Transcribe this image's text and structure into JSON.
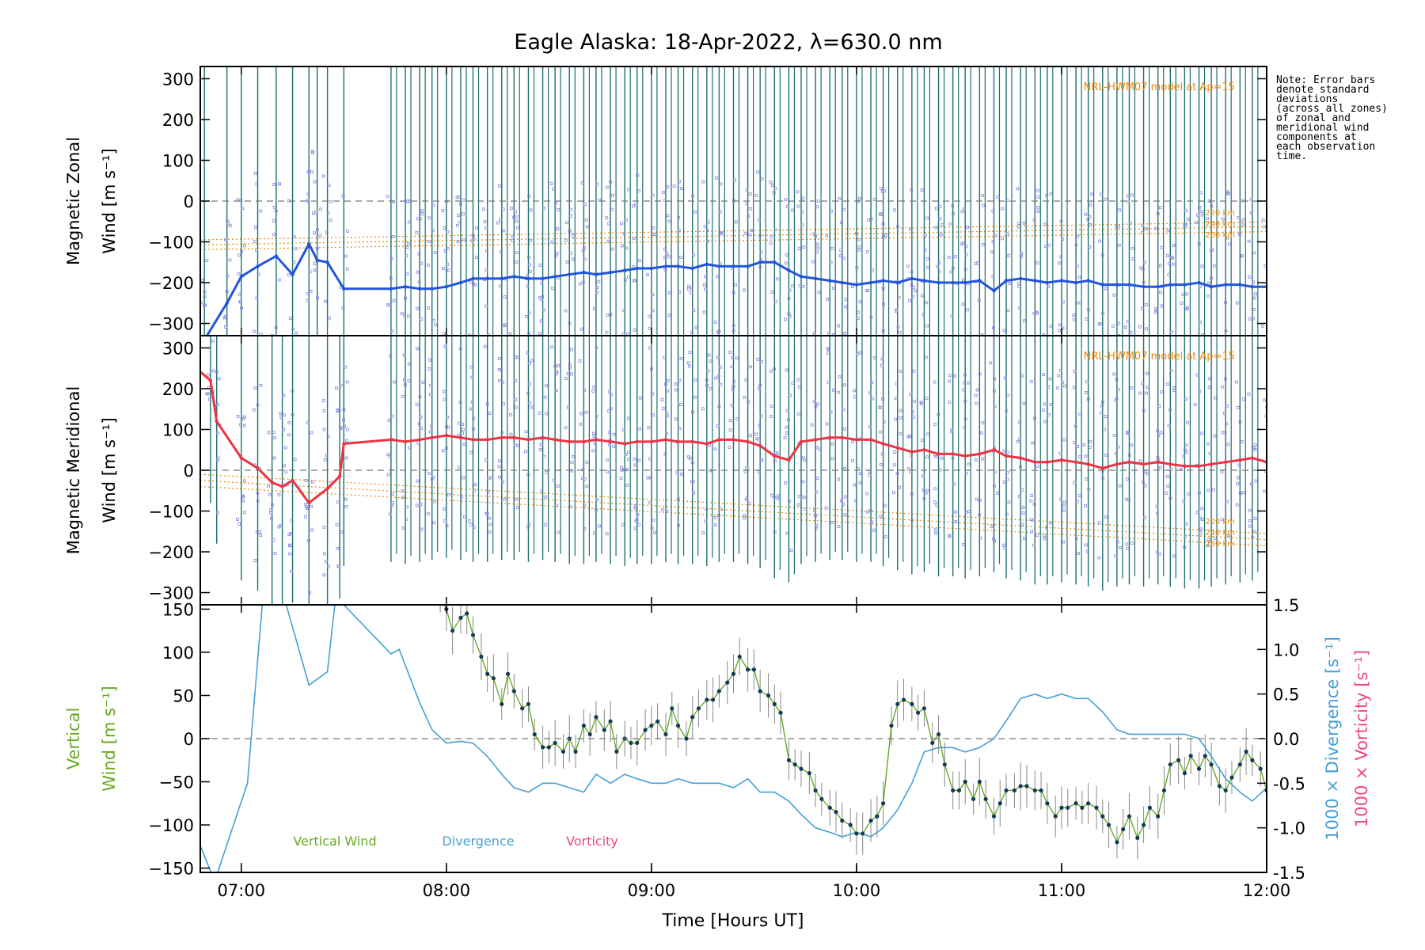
{
  "title": "Eagle Alaska: 18-Apr-2022, λ=630.0 nm",
  "note": "Note: Error bars\ndenote standard\ndeviations\n(across all zones)\nof zonal and\nmeridional wind\ncomponents at\neach observation\ntime.",
  "colors": {
    "zonal": "#2255dd",
    "meridional": "#ee3344",
    "vertical": "#66aa22",
    "divergence": "#44a0d8",
    "vorticity": "#ee4488",
    "model": "#ee8800",
    "errorbar": "#1f6f6f",
    "zone_marker": "#8888dd"
  },
  "chart_data": [
    {
      "type": "line",
      "panel": "zonal",
      "ylabel_line1": "Magnetic Zonal",
      "ylabel_line2": "Wind [m s⁻¹]",
      "ylim": [
        -330,
        330
      ],
      "yticks": [
        300,
        200,
        100,
        0,
        -100,
        -200,
        -300
      ],
      "model_label": "NRL-HWM07 model at Ap=15",
      "model_altitudes": [
        "220 km",
        "240 km",
        "260 km"
      ],
      "zero_line": true,
      "series": [
        {
          "name": "zonal",
          "x": [
            6.82,
            6.93,
            7.0,
            7.08,
            7.17,
            7.25,
            7.33,
            7.37,
            7.42,
            7.5,
            7.73,
            7.8,
            7.87,
            7.93,
            8.0,
            8.07,
            8.13,
            8.2,
            8.27,
            8.33,
            8.4,
            8.47,
            8.53,
            8.6,
            8.67,
            8.73,
            8.8,
            8.87,
            8.93,
            9.0,
            9.07,
            9.13,
            9.2,
            9.27,
            9.33,
            9.4,
            9.47,
            9.53,
            9.6,
            9.67,
            9.73,
            9.8,
            9.87,
            9.93,
            10.0,
            10.07,
            10.13,
            10.2,
            10.27,
            10.33,
            10.4,
            10.47,
            10.53,
            10.6,
            10.67,
            10.73,
            10.8,
            10.87,
            10.93,
            11.0,
            11.07,
            11.13,
            11.2,
            11.27,
            11.33,
            11.4,
            11.47,
            11.53,
            11.6,
            11.67,
            11.73,
            11.8,
            11.87,
            11.93,
            12.0
          ],
          "y": [
            -340,
            -250,
            -185,
            -160,
            -135,
            -180,
            -105,
            -145,
            -150,
            -215,
            -215,
            -210,
            -215,
            -215,
            -210,
            -200,
            -190,
            -190,
            -190,
            -185,
            -190,
            -190,
            -185,
            -180,
            -175,
            -180,
            -175,
            -170,
            -165,
            -165,
            -160,
            -160,
            -165,
            -155,
            -160,
            -160,
            -160,
            -150,
            -150,
            -170,
            -185,
            -190,
            -195,
            -200,
            -205,
            -200,
            -195,
            -200,
            -190,
            -195,
            -200,
            -200,
            -200,
            -195,
            -220,
            -195,
            -190,
            -195,
            -200,
            -195,
            -200,
            -195,
            -205,
            -205,
            -205,
            -210,
            -210,
            -205,
            -205,
            -200,
            -210,
            -205,
            -205,
            -210,
            -210
          ]
        }
      ]
    },
    {
      "type": "line",
      "panel": "meridional",
      "ylabel_line1": "Magnetic Meridional",
      "ylabel_line2": "Wind [m s⁻¹]",
      "ylim": [
        -330,
        330
      ],
      "yticks": [
        300,
        200,
        100,
        0,
        -100,
        -200,
        -300
      ],
      "model_label": "NRL-HWM07 model at Ap=15",
      "model_altitudes": [
        "220 km",
        "240 km",
        "260 km"
      ],
      "zero_line": true,
      "series": [
        {
          "name": "meridional",
          "x": [
            6.78,
            6.85,
            6.88,
            7.0,
            7.08,
            7.15,
            7.2,
            7.25,
            7.33,
            7.42,
            7.48,
            7.5,
            7.73,
            7.8,
            7.87,
            7.93,
            8.0,
            8.07,
            8.13,
            8.2,
            8.27,
            8.33,
            8.4,
            8.47,
            8.53,
            8.6,
            8.67,
            8.73,
            8.8,
            8.87,
            8.93,
            9.0,
            9.07,
            9.13,
            9.2,
            9.27,
            9.33,
            9.4,
            9.47,
            9.53,
            9.6,
            9.67,
            9.73,
            9.8,
            9.87,
            9.93,
            10.0,
            10.07,
            10.13,
            10.2,
            10.27,
            10.33,
            10.4,
            10.47,
            10.53,
            10.6,
            10.67,
            10.73,
            10.8,
            10.87,
            10.93,
            11.0,
            11.07,
            11.13,
            11.2,
            11.27,
            11.33,
            11.4,
            11.47,
            11.53,
            11.6,
            11.67,
            11.73,
            11.8,
            11.87,
            11.93,
            12.0
          ],
          "y": [
            250,
            220,
            120,
            30,
            5,
            -30,
            -40,
            -25,
            -80,
            -45,
            -15,
            65,
            75,
            70,
            75,
            80,
            85,
            80,
            75,
            75,
            80,
            80,
            75,
            80,
            75,
            70,
            70,
            75,
            70,
            65,
            70,
            70,
            75,
            70,
            70,
            65,
            75,
            75,
            70,
            60,
            35,
            25,
            70,
            75,
            80,
            80,
            75,
            75,
            65,
            55,
            45,
            50,
            40,
            40,
            35,
            40,
            50,
            35,
            30,
            20,
            20,
            25,
            20,
            15,
            5,
            15,
            20,
            15,
            20,
            15,
            10,
            10,
            15,
            20,
            25,
            30,
            20
          ]
        }
      ]
    },
    {
      "type": "line",
      "panel": "vertical",
      "ylabel_line1": "Vertical",
      "ylabel_line2": "Wind [m s⁻¹]",
      "ylim": [
        -155,
        155
      ],
      "yticks": [
        150,
        100,
        50,
        0,
        -50,
        -100,
        -150
      ],
      "y2label_div": "1000 × Divergence [s⁻¹]",
      "y2label_vort": "1000 × Vorticity [s⁻¹]",
      "y2lim": [
        -1.5,
        1.5
      ],
      "y2ticks": [
        "1.5",
        "1.0",
        "0.5",
        "0.0",
        "-0.5",
        "-1.0",
        "-1.5"
      ],
      "xlabel": "Time [Hours UT]",
      "xlim": [
        6.8,
        12.0
      ],
      "xticks": [
        "07:00",
        "08:00",
        "09:00",
        "10:00",
        "11:00",
        "12:00"
      ],
      "zero_line": true,
      "legend": [
        "Vertical Wind",
        "Divergence",
        "Vorticity"
      ],
      "series": [
        {
          "name": "Vertical Wind",
          "x": [
            7.97,
            8.0,
            8.03,
            8.07,
            8.1,
            8.13,
            8.17,
            8.2,
            8.23,
            8.27,
            8.3,
            8.33,
            8.37,
            8.4,
            8.43,
            8.47,
            8.5,
            8.53,
            8.57,
            8.6,
            8.63,
            8.67,
            8.7,
            8.73,
            8.77,
            8.8,
            8.83,
            8.87,
            8.9,
            8.93,
            8.97,
            9.0,
            9.03,
            9.07,
            9.1,
            9.13,
            9.17,
            9.2,
            9.23,
            9.27,
            9.3,
            9.33,
            9.37,
            9.4,
            9.43,
            9.47,
            9.5,
            9.53,
            9.57,
            9.6,
            9.63,
            9.67,
            9.7,
            9.73,
            9.77,
            9.8,
            9.83,
            9.87,
            9.9,
            9.93,
            9.97,
            10.0,
            10.03,
            10.07,
            10.1,
            10.13,
            10.17,
            10.2,
            10.23,
            10.27,
            10.3,
            10.33,
            10.37,
            10.4,
            10.43,
            10.47,
            10.5,
            10.53,
            10.57,
            10.6,
            10.63,
            10.67,
            10.7,
            10.73,
            10.77,
            10.8,
            10.83,
            10.87,
            10.9,
            10.93,
            10.97,
            11.0,
            11.03,
            11.07,
            11.1,
            11.13,
            11.17,
            11.2,
            11.23,
            11.27,
            11.3,
            11.33,
            11.37,
            11.4,
            11.43,
            11.47,
            11.5,
            11.53,
            11.57,
            11.6,
            11.63,
            11.67,
            11.7,
            11.73,
            11.77,
            11.8,
            11.83,
            11.87,
            11.9,
            11.93,
            11.97,
            12.0
          ],
          "y": [
            165,
            150,
            125,
            140,
            145,
            120,
            95,
            75,
            70,
            40,
            75,
            55,
            35,
            40,
            5,
            -10,
            -10,
            -5,
            -15,
            0,
            -15,
            15,
            5,
            25,
            10,
            20,
            -15,
            0,
            -5,
            -5,
            10,
            15,
            20,
            5,
            35,
            15,
            0,
            25,
            35,
            45,
            45,
            55,
            65,
            75,
            95,
            80,
            80,
            55,
            50,
            40,
            30,
            -25,
            -30,
            -35,
            -40,
            -60,
            -70,
            -80,
            -85,
            -95,
            -100,
            -110,
            -110,
            -95,
            -90,
            -75,
            15,
            40,
            45,
            40,
            30,
            35,
            -5,
            5,
            -30,
            -60,
            -60,
            -50,
            -70,
            -50,
            -70,
            -90,
            -75,
            -60,
            -60,
            -55,
            -55,
            -60,
            -60,
            -75,
            -90,
            -80,
            -80,
            -75,
            -80,
            -75,
            -80,
            -90,
            -100,
            -120,
            -105,
            -90,
            -115,
            -100,
            -80,
            -90,
            -60,
            -30,
            -25,
            -40,
            -20,
            -35,
            -20,
            -30,
            -55,
            -60,
            -45,
            -30,
            -15,
            -25,
            -35,
            -60
          ]
        },
        {
          "name": "Divergence",
          "x": [
            6.8,
            6.87,
            7.03,
            7.12,
            7.17,
            7.33,
            7.42,
            7.47,
            7.5,
            7.73,
            7.77,
            7.87,
            7.93,
            8.0,
            8.07,
            8.13,
            8.2,
            8.27,
            8.33,
            8.4,
            8.47,
            8.53,
            8.6,
            8.67,
            8.73,
            8.8,
            8.87,
            8.93,
            9.0,
            9.07,
            9.13,
            9.2,
            9.27,
            9.33,
            9.4,
            9.47,
            9.53,
            9.6,
            9.67,
            9.73,
            9.8,
            9.87,
            9.93,
            10.0,
            10.07,
            10.13,
            10.2,
            10.27,
            10.33,
            10.4,
            10.47,
            10.53,
            10.6,
            10.67,
            10.73,
            10.8,
            10.87,
            10.93,
            11.0,
            11.07,
            11.13,
            11.2,
            11.27,
            11.33,
            11.4,
            11.47,
            11.53,
            11.6,
            11.67,
            11.73,
            11.8,
            11.87,
            11.93,
            12.0
          ],
          "y": [
            -1.2,
            -1.6,
            -0.5,
            2.0,
            1.9,
            0.6,
            0.75,
            1.8,
            1.5,
            0.95,
            1.0,
            0.4,
            0.1,
            -0.05,
            -0.03,
            -0.05,
            -0.2,
            -0.4,
            -0.55,
            -0.6,
            -0.5,
            -0.5,
            -0.55,
            -0.6,
            -0.4,
            -0.5,
            -0.4,
            -0.45,
            -0.5,
            -0.5,
            -0.45,
            -0.5,
            -0.5,
            -0.5,
            -0.55,
            -0.45,
            -0.6,
            -0.6,
            -0.7,
            -0.85,
            -1.0,
            -1.05,
            -1.1,
            -1.05,
            -1.1,
            -1.0,
            -0.8,
            -0.5,
            -0.15,
            -0.1,
            -0.1,
            -0.15,
            -0.1,
            0.0,
            0.2,
            0.45,
            0.5,
            0.45,
            0.5,
            0.45,
            0.45,
            0.3,
            0.1,
            0.05,
            0.05,
            0.05,
            0.05,
            0.05,
            0.0,
            -0.2,
            -0.45,
            -0.6,
            -0.7,
            -0.55
          ]
        }
      ]
    }
  ]
}
